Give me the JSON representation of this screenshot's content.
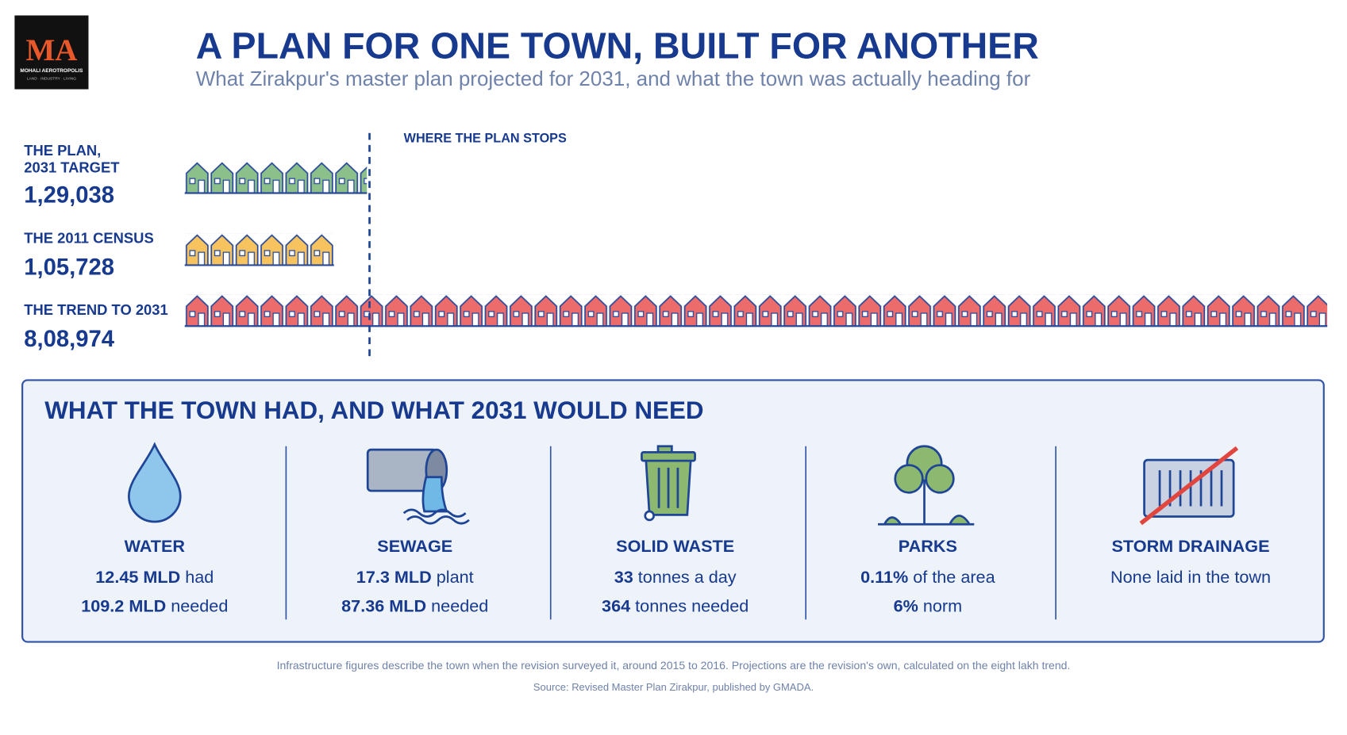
{
  "header": {
    "logo": {
      "initials": "MA",
      "name": "MOHALI AEROTROPOLIS",
      "tagline": "LAND · INDUSTRY · LIVING"
    },
    "title": "A PLAN FOR ONE TOWN, BUILT FOR ANOTHER",
    "subtitle": "What Zirakpur's master plan projected for 2031, and what the town was actually heading for"
  },
  "pictogram": {
    "marker_label": "WHERE THE PLAN STOPS",
    "rows": [
      {
        "label": [
          "THE PLAN,",
          "2031 TARGET"
        ],
        "value": 129038,
        "value_label": "1,29,038",
        "color": "#8cc08a"
      },
      {
        "label": [
          "THE 2011 CENSUS"
        ],
        "value": 105728,
        "value_label": "1,05,728",
        "color": "#f7c35f"
      },
      {
        "label": [
          "THE TREND TO 2031"
        ],
        "value": 808974,
        "value_label": "8,08,974",
        "color": "#ec6b6b"
      }
    ]
  },
  "needs": {
    "title": "WHAT THE TOWN HAD, AND WHAT 2031 WOULD NEED",
    "items": [
      {
        "name": "WATER",
        "lines": [
          {
            "bold": "12.45 MLD",
            "text": "had"
          },
          {
            "bold": "109.2 MLD",
            "text": "needed"
          }
        ]
      },
      {
        "name": "SEWAGE",
        "lines": [
          {
            "bold": "17.3 MLD",
            "text": "plant"
          },
          {
            "bold": "87.36 MLD",
            "text": "needed"
          }
        ]
      },
      {
        "name": "SOLID WASTE",
        "lines": [
          {
            "bold": "33",
            "text": "tonnes a day"
          },
          {
            "bold": "364",
            "text": "tonnes needed"
          }
        ]
      },
      {
        "name": "PARKS",
        "lines": [
          {
            "bold": "0.11%",
            "text": "of the area"
          },
          {
            "bold": "6%",
            "text": "norm"
          }
        ]
      },
      {
        "name": "STORM DRAINAGE",
        "lines": [
          {
            "text": "None laid in the town"
          }
        ]
      }
    ]
  },
  "footer": {
    "note": "Infrastructure figures describe the town when the revision surveyed it, around 2015 to 2016. Projections are the revision's own, calculated on the eight lakh trend.",
    "source": "Source: Revised Master Plan Zirakpur, published by GMADA."
  }
}
